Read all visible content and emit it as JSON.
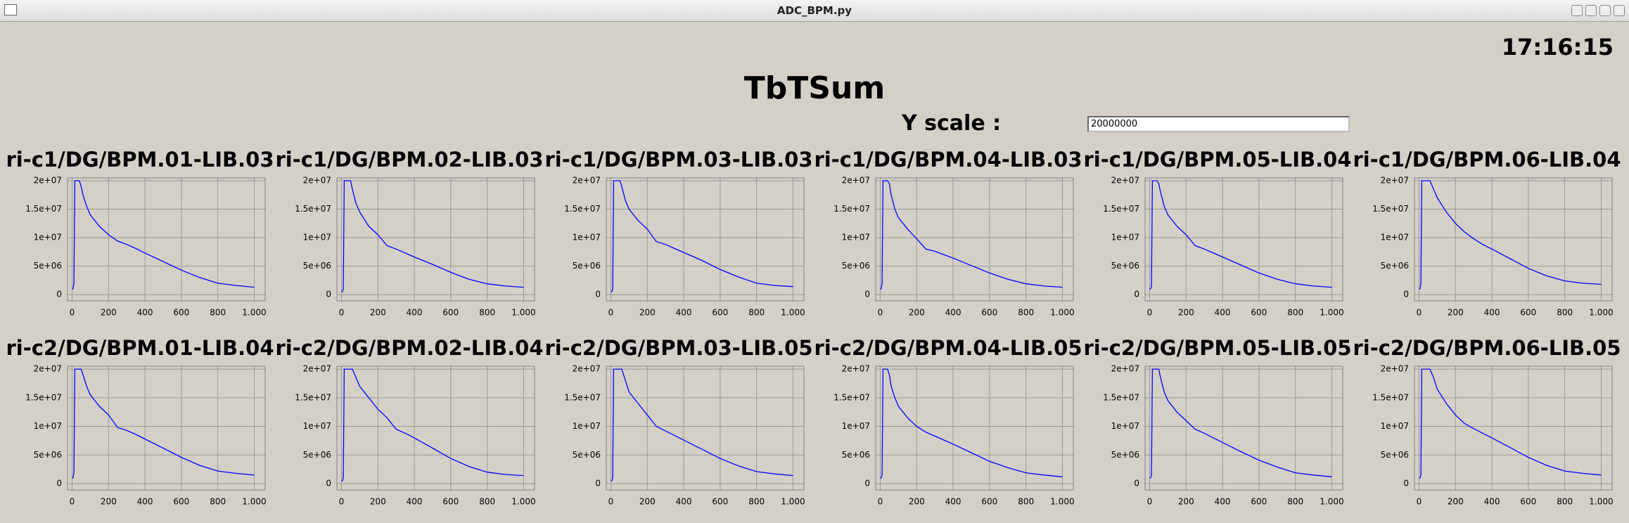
{
  "window": {
    "title": "ADC_BPM.py"
  },
  "clock": "17:16:15",
  "title": "TbTSum",
  "y_scale": {
    "label": "Y scale :",
    "value": "20000000"
  },
  "chart_data": [
    {
      "type": "line",
      "title": "ri-c1/DG/BPM.01-LIB.03",
      "color": "#0000ff",
      "grid": true,
      "xlim": [
        -25,
        1060
      ],
      "ylim": [
        -1100000,
        20500000
      ],
      "xticks": [
        0,
        200,
        400,
        600,
        800,
        {
          "value": 1000,
          "label": "1.000"
        }
      ],
      "yticks": [
        0,
        {
          "value": 5000000,
          "label": "5e+06"
        },
        {
          "value": 10000000,
          "label": "1e+07"
        },
        {
          "value": 15000000,
          "label": "1.5e+07"
        },
        {
          "value": 20000000,
          "label": "2e+07"
        }
      ],
      "x": [
        0,
        5,
        10,
        15,
        20,
        30,
        40,
        50,
        60,
        80,
        100,
        150,
        200,
        250,
        300,
        350,
        400,
        500,
        600,
        700,
        800,
        900,
        1000
      ],
      "values": [
        1000000.0,
        1000000.0,
        2000000.0,
        20000000.0,
        20000000.0,
        20000000.0,
        20000000.0,
        19000000.0,
        17500000.0,
        15500000.0,
        14000000.0,
        12000000.0,
        10500000.0,
        9400000.0,
        8800000.0,
        8100000.0,
        7300000.0,
        5800000.0,
        4300000.0,
        3000000.0,
        2000000.0,
        1600000.0,
        1300000.0
      ]
    },
    {
      "type": "line",
      "title": "ri-c1/DG/BPM.02-LIB.03",
      "color": "#0000ff",
      "grid": true,
      "xlim": [
        -25,
        1060
      ],
      "ylim": [
        -1100000,
        20500000
      ],
      "xticks": [
        0,
        200,
        400,
        600,
        800,
        {
          "value": 1000,
          "label": "1.000"
        }
      ],
      "yticks": [
        0,
        {
          "value": 5000000,
          "label": "5e+06"
        },
        {
          "value": 10000000,
          "label": "1e+07"
        },
        {
          "value": 15000000,
          "label": "1.5e+07"
        },
        {
          "value": 20000000,
          "label": "2e+07"
        }
      ],
      "x": [
        0,
        5,
        10,
        15,
        20,
        30,
        40,
        50,
        60,
        80,
        100,
        150,
        200,
        250,
        300,
        350,
        400,
        500,
        600,
        700,
        800,
        900,
        1000
      ],
      "values": [
        500000.0,
        500000.0,
        1000000.0,
        20000000.0,
        20000000.0,
        20000000.0,
        20000000.0,
        20000000.0,
        18500000.0,
        16000000.0,
        14500000.0,
        12000000.0,
        10500000.0,
        8600000.0,
        8000000.0,
        7300000.0,
        6600000.0,
        5300000.0,
        3900000.0,
        2700000.0,
        1900000.0,
        1500000.0,
        1300000.0
      ]
    },
    {
      "type": "line",
      "title": "ri-c1/DG/BPM.03-LIB.03",
      "color": "#0000ff",
      "grid": true,
      "xlim": [
        -25,
        1060
      ],
      "ylim": [
        -1100000,
        20500000
      ],
      "xticks": [
        0,
        200,
        400,
        600,
        800,
        {
          "value": 1000,
          "label": "1.000"
        }
      ],
      "yticks": [
        0,
        {
          "value": 5000000,
          "label": "5e+06"
        },
        {
          "value": 10000000,
          "label": "1e+07"
        },
        {
          "value": 15000000,
          "label": "1.5e+07"
        },
        {
          "value": 20000000,
          "label": "2e+07"
        }
      ],
      "x": [
        0,
        5,
        10,
        15,
        20,
        30,
        40,
        50,
        60,
        80,
        100,
        150,
        200,
        250,
        300,
        350,
        400,
        500,
        600,
        700,
        800,
        900,
        1000
      ],
      "values": [
        500000.0,
        500000.0,
        1000000.0,
        20000000.0,
        20000000.0,
        20000000.0,
        20000000.0,
        20000000.0,
        19000000.0,
        16500000.0,
        15000000.0,
        13000000.0,
        11500000.0,
        9300000.0,
        8800000.0,
        8100000.0,
        7400000.0,
        6000000.0,
        4400000.0,
        3100000.0,
        2000000.0,
        1600000.0,
        1400000.0
      ]
    },
    {
      "type": "line",
      "title": "ri-c1/DG/BPM.04-LIB.03",
      "color": "#0000ff",
      "grid": true,
      "xlim": [
        -25,
        1060
      ],
      "ylim": [
        -1100000,
        20500000
      ],
      "xticks": [
        0,
        200,
        400,
        600,
        800,
        {
          "value": 1000,
          "label": "1.000"
        }
      ],
      "yticks": [
        0,
        {
          "value": 5000000,
          "label": "5e+06"
        },
        {
          "value": 10000000,
          "label": "1e+07"
        },
        {
          "value": 15000000,
          "label": "1.5e+07"
        },
        {
          "value": 20000000,
          "label": "2e+07"
        }
      ],
      "x": [
        0,
        5,
        10,
        15,
        20,
        30,
        40,
        50,
        60,
        80,
        100,
        150,
        200,
        250,
        300,
        350,
        400,
        500,
        600,
        700,
        800,
        900,
        1000
      ],
      "values": [
        1000000.0,
        1000000.0,
        2000000.0,
        20000000.0,
        20000000.0,
        20000000.0,
        20000000.0,
        19500000.0,
        17500000.0,
        15000000.0,
        13500000.0,
        11500000.0,
        9800000.0,
        8000000.0,
        7600000.0,
        7000000.0,
        6400000.0,
        5100000.0,
        3800000.0,
        2700000.0,
        1900000.0,
        1500000.0,
        1300000.0
      ]
    },
    {
      "type": "line",
      "title": "ri-c1/DG/BPM.05-LIB.04",
      "color": "#0000ff",
      "grid": true,
      "xlim": [
        -25,
        1060
      ],
      "ylim": [
        -1100000,
        20500000
      ],
      "xticks": [
        0,
        200,
        400,
        600,
        800,
        {
          "value": 1000,
          "label": "1.000"
        }
      ],
      "yticks": [
        0,
        {
          "value": 5000000,
          "label": "5e+06"
        },
        {
          "value": 10000000,
          "label": "1e+07"
        },
        {
          "value": 15000000,
          "label": "1.5e+07"
        },
        {
          "value": 20000000,
          "label": "2e+07"
        }
      ],
      "x": [
        0,
        5,
        10,
        15,
        20,
        30,
        40,
        50,
        60,
        80,
        100,
        150,
        200,
        250,
        300,
        350,
        400,
        500,
        600,
        700,
        800,
        900,
        1000
      ],
      "values": [
        1000000.0,
        1000000.0,
        1500000.0,
        20000000.0,
        20000000.0,
        20000000.0,
        20000000.0,
        19500000.0,
        18000000.0,
        15500000.0,
        14000000.0,
        12000000.0,
        10500000.0,
        8600000.0,
        8000000.0,
        7300000.0,
        6600000.0,
        5200000.0,
        3800000.0,
        2700000.0,
        1900000.0,
        1500000.0,
        1300000.0
      ]
    },
    {
      "type": "line",
      "title": "ri-c1/DG/BPM.06-LIB.04",
      "color": "#0000ff",
      "grid": true,
      "xlim": [
        -25,
        1060
      ],
      "ylim": [
        -1100000,
        20500000
      ],
      "xticks": [
        0,
        200,
        400,
        600,
        800,
        {
          "value": 1000,
          "label": "1.000"
        }
      ],
      "yticks": [
        0,
        {
          "value": 5000000,
          "label": "5e+06"
        },
        {
          "value": 10000000,
          "label": "1e+07"
        },
        {
          "value": 15000000,
          "label": "1.5e+07"
        },
        {
          "value": 20000000,
          "label": "2e+07"
        }
      ],
      "x": [
        0,
        5,
        10,
        15,
        20,
        30,
        40,
        50,
        60,
        80,
        100,
        150,
        200,
        250,
        300,
        350,
        400,
        500,
        600,
        700,
        800,
        900,
        1000
      ],
      "values": [
        1000000.0,
        1000000.0,
        2000000.0,
        20000000.0,
        20000000.0,
        20000000.0,
        20000000.0,
        20000000.0,
        20000000.0,
        18500000.0,
        17000000.0,
        14500000.0,
        12500000.0,
        11000000.0,
        9800000.0,
        8800000.0,
        8000000.0,
        6300000.0,
        4600000.0,
        3300000.0,
        2400000.0,
        2000000.0,
        1800000.0
      ]
    },
    {
      "type": "line",
      "title": "ri-c2/DG/BPM.01-LIB.04",
      "color": "#0000ff",
      "grid": true,
      "xlim": [
        -25,
        1060
      ],
      "ylim": [
        -1100000,
        20500000
      ],
      "xticks": [
        0,
        200,
        400,
        600,
        800,
        {
          "value": 1000,
          "label": "1.000"
        }
      ],
      "yticks": [
        0,
        {
          "value": 5000000,
          "label": "5e+06"
        },
        {
          "value": 10000000,
          "label": "1e+07"
        },
        {
          "value": 15000000,
          "label": "1.5e+07"
        },
        {
          "value": 20000000,
          "label": "2e+07"
        }
      ],
      "x": [
        0,
        5,
        10,
        15,
        20,
        30,
        40,
        50,
        60,
        80,
        100,
        150,
        200,
        250,
        300,
        350,
        400,
        500,
        600,
        700,
        800,
        900,
        1000
      ],
      "values": [
        1000000.0,
        1000000.0,
        2000000.0,
        20000000.0,
        20000000.0,
        20000000.0,
        20000000.0,
        20000000.0,
        19000000.0,
        17000000.0,
        15500000.0,
        13500000.0,
        12000000.0,
        9800000.0,
        9300000.0,
        8600000.0,
        7800000.0,
        6200000.0,
        4600000.0,
        3200000.0,
        2200000.0,
        1800000.0,
        1500000.0
      ]
    },
    {
      "type": "line",
      "title": "ri-c2/DG/BPM.02-LIB.04",
      "color": "#0000ff",
      "grid": true,
      "xlim": [
        -25,
        1060
      ],
      "ylim": [
        -1100000,
        20500000
      ],
      "xticks": [
        0,
        200,
        400,
        600,
        800,
        {
          "value": 1000,
          "label": "1.000"
        }
      ],
      "yticks": [
        0,
        {
          "value": 5000000,
          "label": "5e+06"
        },
        {
          "value": 10000000,
          "label": "1e+07"
        },
        {
          "value": 15000000,
          "label": "1.5e+07"
        },
        {
          "value": 20000000,
          "label": "2e+07"
        }
      ],
      "x": [
        0,
        5,
        10,
        15,
        20,
        30,
        40,
        50,
        60,
        80,
        100,
        150,
        200,
        250,
        300,
        350,
        400,
        500,
        600,
        700,
        800,
        900,
        1000
      ],
      "values": [
        500000.0,
        500000.0,
        1000000.0,
        20000000.0,
        20000000.0,
        20000000.0,
        20000000.0,
        20000000.0,
        20000000.0,
        18500000.0,
        17000000.0,
        15000000.0,
        13000000.0,
        11500000.0,
        9500000.0,
        8800000.0,
        8000000.0,
        6200000.0,
        4400000.0,
        3000000.0,
        2000000.0,
        1600000.0,
        1400000.0
      ]
    },
    {
      "type": "line",
      "title": "ri-c2/DG/BPM.03-LIB.05",
      "color": "#0000ff",
      "grid": true,
      "xlim": [
        -25,
        1060
      ],
      "ylim": [
        -1100000,
        20500000
      ],
      "xticks": [
        0,
        200,
        400,
        600,
        800,
        {
          "value": 1000,
          "label": "1.000"
        }
      ],
      "yticks": [
        0,
        {
          "value": 5000000,
          "label": "5e+06"
        },
        {
          "value": 10000000,
          "label": "1e+07"
        },
        {
          "value": 15000000,
          "label": "1.5e+07"
        },
        {
          "value": 20000000,
          "label": "2e+07"
        }
      ],
      "x": [
        0,
        5,
        10,
        15,
        20,
        30,
        40,
        50,
        60,
        80,
        100,
        150,
        200,
        250,
        300,
        350,
        400,
        500,
        600,
        700,
        800,
        900,
        1000
      ],
      "values": [
        500000.0,
        500000.0,
        1000000.0,
        20000000.0,
        20000000.0,
        20000000.0,
        20000000.0,
        20000000.0,
        20000000.0,
        18000000.0,
        16000000.0,
        14000000.0,
        12000000.0,
        10000000.0,
        9200000.0,
        8400000.0,
        7600000.0,
        6000000.0,
        4400000.0,
        3100000.0,
        2100000.0,
        1700000.0,
        1400000.0
      ]
    },
    {
      "type": "line",
      "title": "ri-c2/DG/BPM.04-LIB.05",
      "color": "#0000ff",
      "grid": true,
      "xlim": [
        -25,
        1060
      ],
      "ylim": [
        -1100000,
        20500000
      ],
      "xticks": [
        0,
        200,
        400,
        600,
        800,
        {
          "value": 1000,
          "label": "1.000"
        }
      ],
      "yticks": [
        0,
        {
          "value": 5000000,
          "label": "5e+06"
        },
        {
          "value": 10000000,
          "label": "1e+07"
        },
        {
          "value": 15000000,
          "label": "1.5e+07"
        },
        {
          "value": 20000000,
          "label": "2e+07"
        }
      ],
      "x": [
        0,
        5,
        10,
        15,
        20,
        30,
        40,
        50,
        60,
        80,
        100,
        150,
        200,
        250,
        300,
        350,
        400,
        500,
        600,
        700,
        800,
        900,
        1000
      ],
      "values": [
        1000000.0,
        1000000.0,
        1500000.0,
        20000000.0,
        20000000.0,
        20000000.0,
        20000000.0,
        19000000.0,
        17000000.0,
        15000000.0,
        13500000.0,
        11500000.0,
        10000000.0,
        9000000.0,
        8300000.0,
        7600000.0,
        6900000.0,
        5400000.0,
        3900000.0,
        2800000.0,
        1900000.0,
        1500000.0,
        1200000.0
      ]
    },
    {
      "type": "line",
      "title": "ri-c2/DG/BPM.05-LIB.05",
      "color": "#0000ff",
      "grid": true,
      "xlim": [
        -25,
        1060
      ],
      "ylim": [
        -1100000,
        20500000
      ],
      "xticks": [
        0,
        200,
        400,
        600,
        800,
        {
          "value": 1000,
          "label": "1.000"
        }
      ],
      "yticks": [
        0,
        {
          "value": 5000000,
          "label": "5e+06"
        },
        {
          "value": 10000000,
          "label": "1e+07"
        },
        {
          "value": 15000000,
          "label": "1.5e+07"
        },
        {
          "value": 20000000,
          "label": "2e+07"
        }
      ],
      "x": [
        0,
        5,
        10,
        15,
        20,
        30,
        40,
        50,
        60,
        80,
        100,
        150,
        200,
        250,
        300,
        350,
        400,
        500,
        600,
        700,
        800,
        900,
        1000
      ],
      "values": [
        1000000.0,
        1000000.0,
        1500000.0,
        20000000.0,
        20000000.0,
        20000000.0,
        20000000.0,
        20000000.0,
        18500000.0,
        16000000.0,
        14500000.0,
        12500000.0,
        11000000.0,
        9500000.0,
        8800000.0,
        8000000.0,
        7200000.0,
        5600000.0,
        4100000.0,
        2900000.0,
        1900000.0,
        1500000.0,
        1200000.0
      ]
    },
    {
      "type": "line",
      "title": "ri-c2/DG/BPM.06-LIB.05",
      "color": "#0000ff",
      "grid": true,
      "xlim": [
        -25,
        1060
      ],
      "ylim": [
        -1100000,
        20500000
      ],
      "xticks": [
        0,
        200,
        400,
        600,
        800,
        {
          "value": 1000,
          "label": "1.000"
        }
      ],
      "yticks": [
        0,
        {
          "value": 5000000,
          "label": "5e+06"
        },
        {
          "value": 10000000,
          "label": "1e+07"
        },
        {
          "value": 15000000,
          "label": "1.5e+07"
        },
        {
          "value": 20000000,
          "label": "2e+07"
        }
      ],
      "x": [
        0,
        5,
        10,
        15,
        20,
        30,
        40,
        50,
        60,
        80,
        100,
        150,
        200,
        250,
        300,
        350,
        400,
        500,
        600,
        700,
        800,
        900,
        1000
      ],
      "values": [
        1000000.0,
        1000000.0,
        1500000.0,
        20000000.0,
        20000000.0,
        20000000.0,
        20000000.0,
        20000000.0,
        20000000.0,
        18500000.0,
        16500000.0,
        14000000.0,
        12000000.0,
        10500000.0,
        9600000.0,
        8800000.0,
        8000000.0,
        6300000.0,
        4600000.0,
        3200000.0,
        2200000.0,
        1800000.0,
        1500000.0
      ]
    }
  ]
}
